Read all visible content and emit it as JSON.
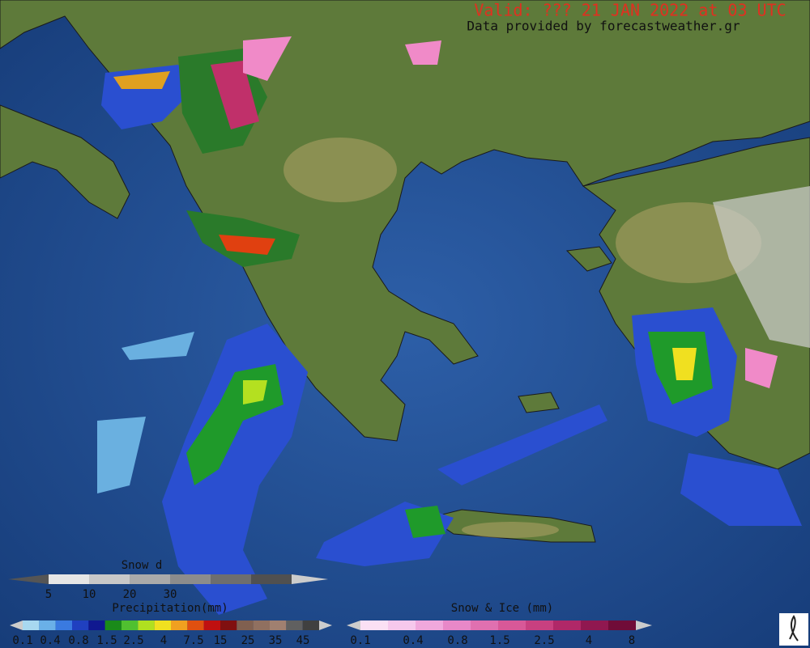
{
  "header": {
    "valid": "Valid: ??? 21 JAN 2022 at 03 UTC",
    "source": "Data provided by forecastweather.gr"
  },
  "legends": {
    "snow_depth": {
      "title": "Snow d",
      "labels": [
        "5",
        "10",
        "20",
        "30"
      ]
    },
    "precipitation": {
      "title": "Precipitation(mm)",
      "labels": [
        "0.1",
        "0.4",
        "0.8",
        "1.5",
        "2.5",
        "4",
        "7.5",
        "15",
        "25",
        "35",
        "45"
      ]
    },
    "snow_ice": {
      "title": "Snow & Ice (mm)",
      "labels": [
        "0.1",
        "0.4",
        "0.8",
        "1.5",
        "2.5",
        "4",
        "8"
      ]
    }
  }
}
